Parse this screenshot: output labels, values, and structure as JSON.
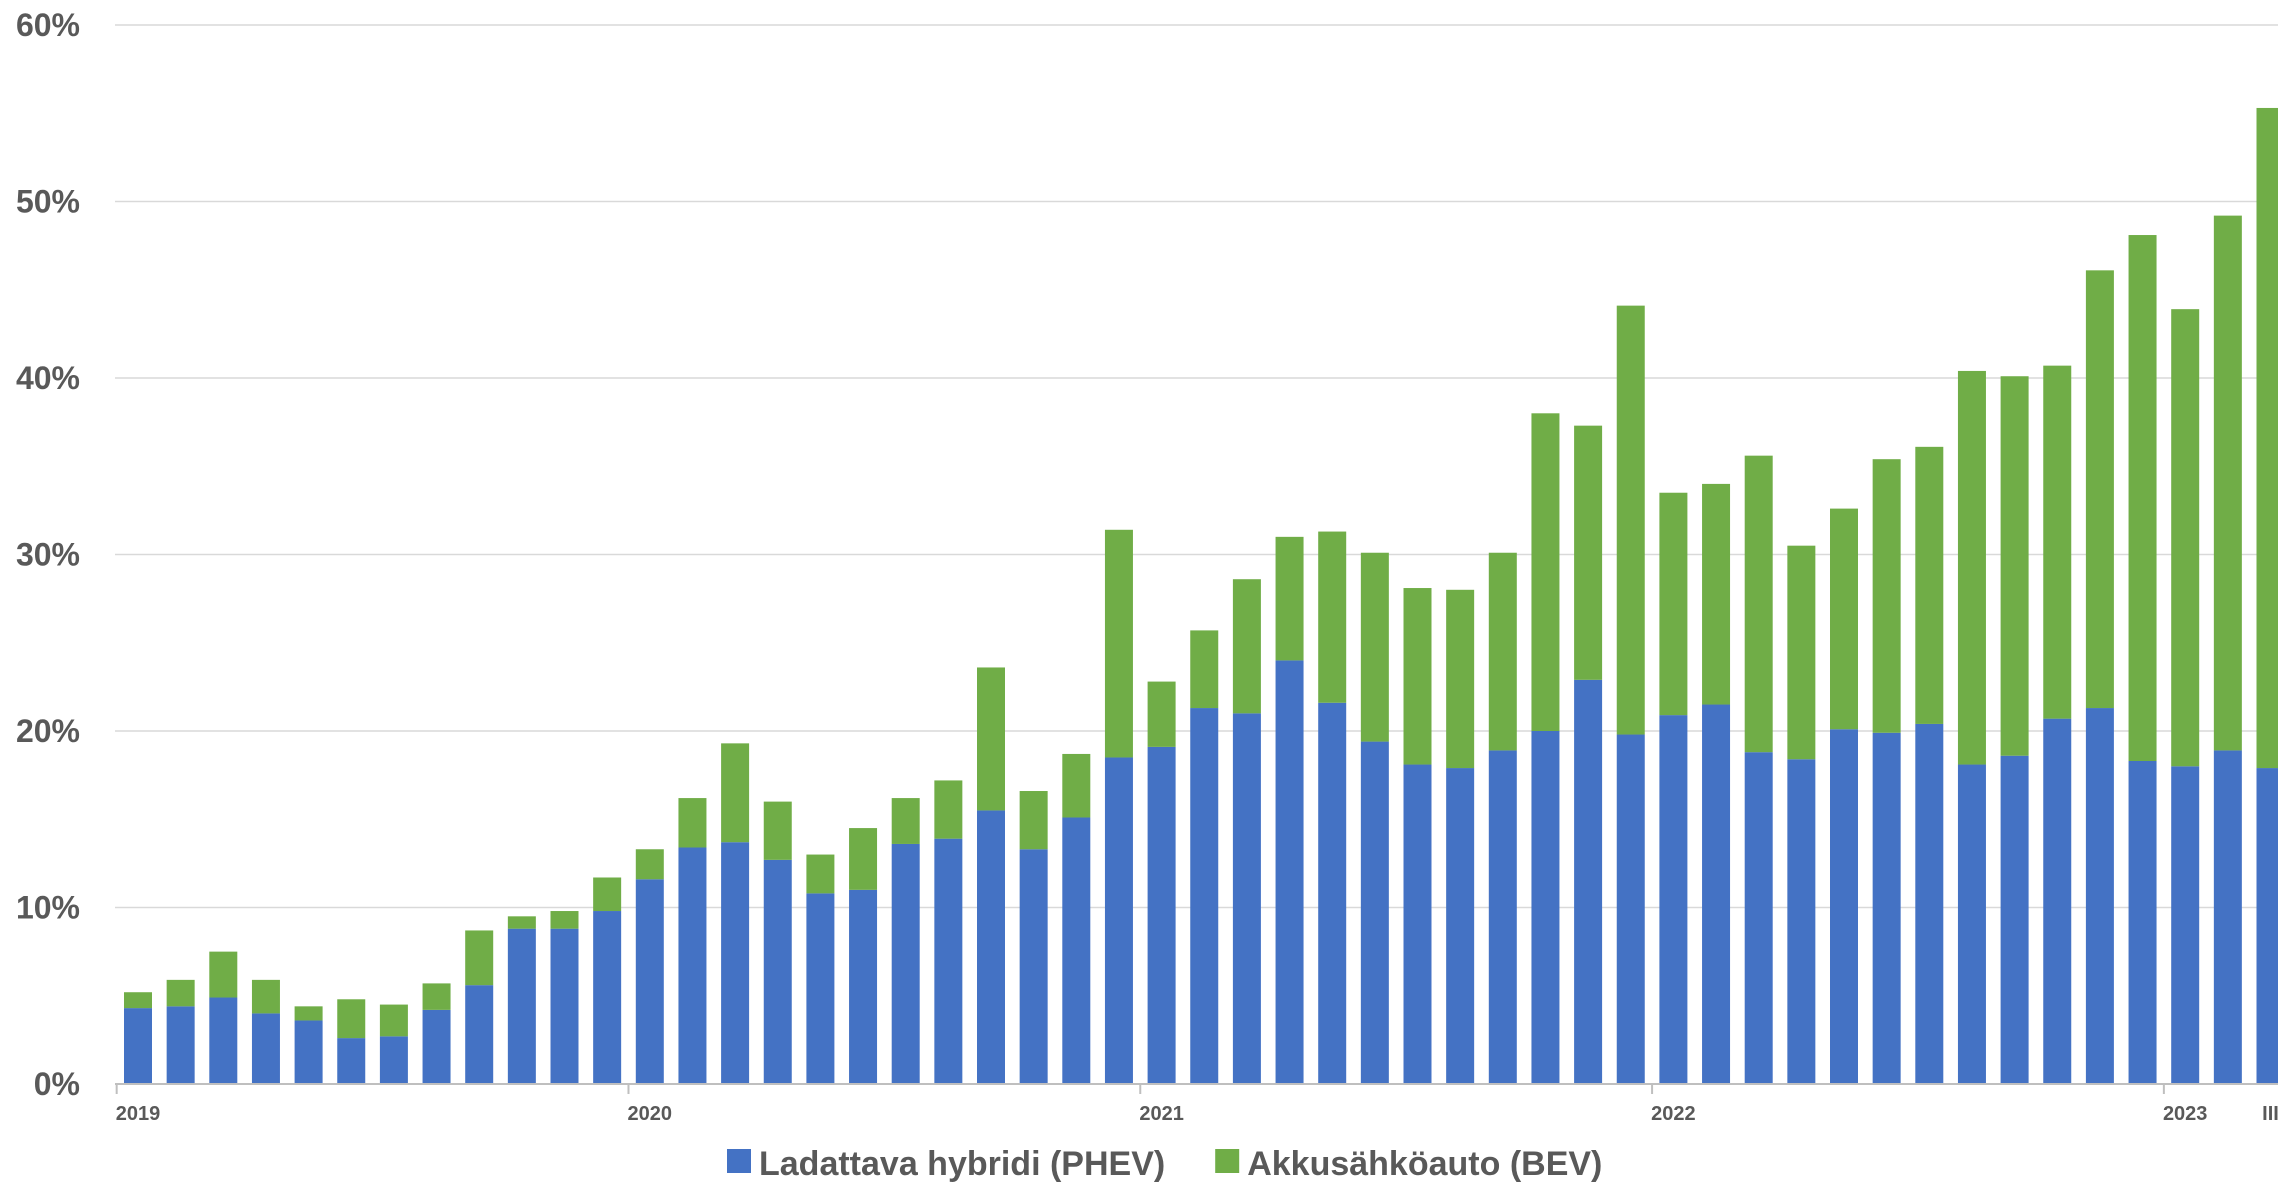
{
  "chart_data": {
    "type": "bar",
    "stacked": true,
    "ylim": [
      0,
      60
    ],
    "y_ticks": [
      0,
      10,
      20,
      30,
      40,
      50,
      60
    ],
    "y_tick_suffix": "%",
    "grid": true,
    "legend_position": "bottom",
    "x_labels": [
      {
        "index": 0,
        "label": "2019"
      },
      {
        "index": 12,
        "label": "2020"
      },
      {
        "index": 24,
        "label": "2021"
      },
      {
        "index": 36,
        "label": "2022"
      },
      {
        "index": 48,
        "label": "2023"
      },
      {
        "index": 50,
        "label": "III"
      }
    ],
    "series": [
      {
        "name": "Ladattava hybridi (PHEV)",
        "color": "#4472C4",
        "values": [
          4.3,
          4.4,
          4.9,
          4.0,
          3.6,
          2.6,
          2.7,
          4.2,
          5.6,
          8.8,
          8.8,
          9.8,
          11.6,
          13.4,
          13.7,
          12.7,
          10.8,
          11.0,
          13.6,
          13.9,
          15.5,
          13.3,
          15.1,
          18.5,
          19.1,
          21.3,
          21.0,
          24.0,
          21.6,
          19.4,
          18.1,
          17.9,
          18.9,
          20.0,
          22.9,
          19.8,
          20.9,
          21.5,
          18.8,
          18.4,
          20.1,
          19.9,
          20.4,
          18.1,
          18.6,
          20.7,
          21.3,
          18.3,
          18.0,
          18.9,
          17.9
        ]
      },
      {
        "name": "Akkusähköauto (BEV)",
        "color": "#70AD47",
        "values": [
          0.9,
          1.5,
          2.6,
          1.9,
          0.8,
          2.2,
          1.8,
          1.5,
          3.1,
          0.7,
          1.0,
          1.9,
          1.7,
          2.8,
          5.6,
          3.3,
          2.2,
          3.5,
          2.6,
          3.3,
          8.1,
          3.3,
          3.6,
          12.9,
          3.7,
          4.4,
          7.6,
          7.0,
          9.7,
          10.7,
          10.0,
          10.1,
          11.2,
          18.0,
          14.4,
          24.3,
          12.6,
          12.5,
          16.8,
          12.1,
          12.5,
          15.5,
          15.7,
          22.3,
          21.5,
          20.0,
          24.8,
          29.8,
          25.9,
          30.3,
          37.4
        ]
      }
    ]
  }
}
